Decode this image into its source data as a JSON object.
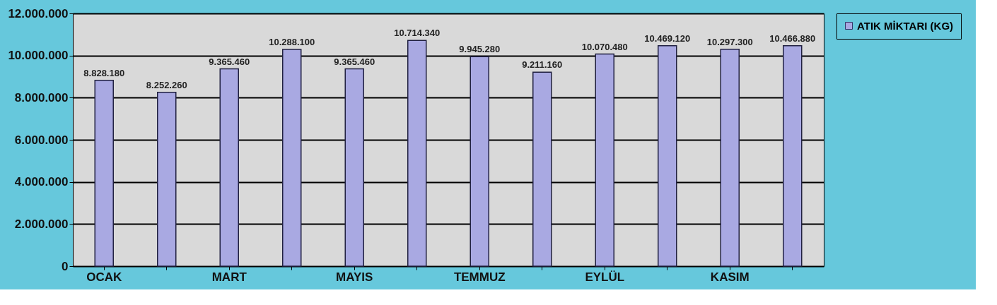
{
  "chart_data": {
    "type": "bar",
    "categories": [
      "OCAK",
      null,
      "MART",
      null,
      "MAYIS",
      null,
      "TEMMUZ",
      null,
      "EYLÜL",
      null,
      "KASIM",
      null
    ],
    "series": [
      {
        "name": "ATIK MİKTARI (KG)",
        "color": "#a9a9e2",
        "values": [
          8828180,
          8252260,
          9365460,
          10288100,
          9365460,
          10714340,
          9945280,
          9211160,
          10070480,
          10469120,
          10297300,
          10466880
        ],
        "value_labels": [
          "8.828.180",
          "8.252.260",
          "9.365.460",
          "10.288.100",
          "9.365.460",
          "10.714.340",
          "9.945.280",
          "9.211.160",
          "10.070.480",
          "10.469.120",
          "10.297.300",
          "10.466.880"
        ]
      }
    ],
    "ylim": [
      0,
      12000000
    ],
    "yticks": [
      0,
      {
        "value": 2000000,
        "label": "2.000.000"
      },
      {
        "value": 4000000,
        "label": "4.000.000"
      },
      {
        "value": 6000000,
        "label": "6.000.000"
      },
      {
        "value": 8000000,
        "label": "8.000.000"
      },
      {
        "value": 10000000,
        "label": "10.000.000"
      },
      {
        "value": 12000000,
        "label": "12.000.000"
      }
    ],
    "grid": "y",
    "legend": "right"
  }
}
